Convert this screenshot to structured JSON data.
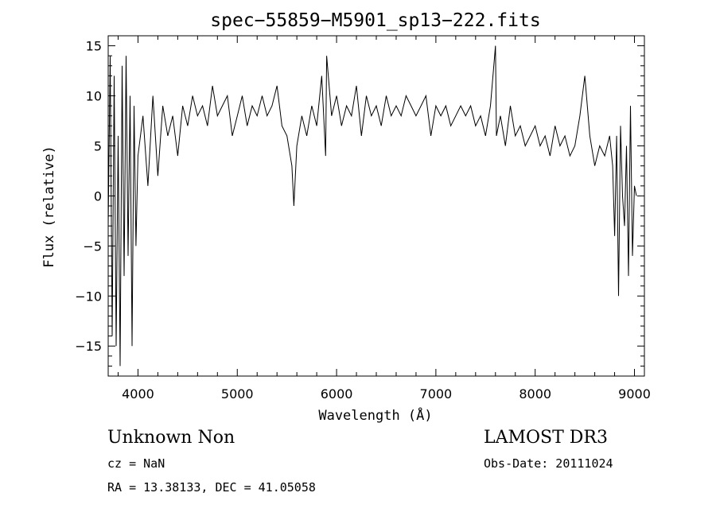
{
  "chart_data": {
    "type": "line",
    "title": "spec−55859−M5901_sp13−222.fits",
    "xlabel": "Wavelength (Å)",
    "ylabel": "Flux (relative)",
    "xlim": [
      3700,
      9100
    ],
    "ylim": [
      -18,
      16
    ],
    "xticks": [
      4000,
      5000,
      6000,
      7000,
      8000,
      9000
    ],
    "yticks": [
      15,
      10,
      5,
      0,
      -5,
      -10,
      -15
    ],
    "xtick_labels": [
      "4000",
      "5000",
      "6000",
      "7000",
      "8000",
      "9000"
    ],
    "ytick_labels": [
      "15",
      "10",
      "5",
      "0",
      "−5",
      "−10",
      "−15"
    ],
    "grid": false,
    "series": [
      {
        "x": [
          3700,
          3720,
          3740,
          3760,
          3780,
          3800,
          3820,
          3840,
          3860,
          3880,
          3900,
          3920,
          3940,
          3960,
          3980,
          4000,
          4050,
          4100,
          4150,
          4200,
          4250,
          4300,
          4350,
          4400,
          4450,
          4500,
          4550,
          4600,
          4650,
          4700,
          4750,
          4800,
          4850,
          4900,
          4950,
          5000,
          5050,
          5100,
          5150,
          5200,
          5250,
          5300,
          5350,
          5400,
          5450,
          5500,
          5550,
          5570,
          5600,
          5650,
          5700,
          5750,
          5800,
          5850,
          5890,
          5900,
          5950,
          6000,
          6050,
          6100,
          6150,
          6200,
          6250,
          6300,
          6350,
          6400,
          6450,
          6500,
          6550,
          6600,
          6650,
          6700,
          6750,
          6800,
          6850,
          6900,
          6950,
          7000,
          7050,
          7100,
          7150,
          7200,
          7250,
          7300,
          7350,
          7400,
          7450,
          7500,
          7550,
          7600,
          7610,
          7650,
          7700,
          7750,
          7800,
          7850,
          7900,
          7950,
          8000,
          8050,
          8100,
          8150,
          8200,
          8250,
          8300,
          8350,
          8400,
          8450,
          8500,
          8550,
          8600,
          8650,
          8700,
          8750,
          8780,
          8800,
          8820,
          8840,
          8860,
          8880,
          8900,
          8920,
          8940,
          8960,
          8980,
          9000,
          9020
        ],
        "y": [
          -3,
          14,
          -14,
          12,
          -15,
          6,
          -17,
          13,
          -8,
          14,
          -6,
          10,
          -15,
          9,
          -5,
          4,
          8,
          1,
          10,
          2,
          9,
          6,
          8,
          4,
          9,
          7,
          10,
          8,
          9,
          7,
          11,
          8,
          9,
          10,
          6,
          8,
          10,
          7,
          9,
          8,
          10,
          8,
          9,
          11,
          7,
          6,
          3,
          -1,
          5,
          8,
          6,
          9,
          7,
          12,
          4,
          14,
          8,
          10,
          7,
          9,
          8,
          11,
          6,
          10,
          8,
          9,
          7,
          10,
          8,
          9,
          8,
          10,
          9,
          8,
          9,
          10,
          6,
          9,
          8,
          9,
          7,
          8,
          9,
          8,
          9,
          7,
          8,
          6,
          9,
          15,
          6,
          8,
          5,
          9,
          6,
          7,
          5,
          6,
          7,
          5,
          6,
          4,
          7,
          5,
          6,
          4,
          5,
          8,
          12,
          6,
          3,
          5,
          4,
          6,
          3,
          -4,
          6,
          -10,
          7,
          0,
          -3,
          5,
          -8,
          9,
          -6,
          1,
          0
        ]
      }
    ]
  },
  "annotations": {
    "left_line1": "Unknown   Non",
    "right_line1": "LAMOST DR3",
    "cz": "cz = NaN",
    "obs_date": "Obs-Date: 20111024",
    "radec": "RA =  13.38133, DEC =  41.05058"
  }
}
